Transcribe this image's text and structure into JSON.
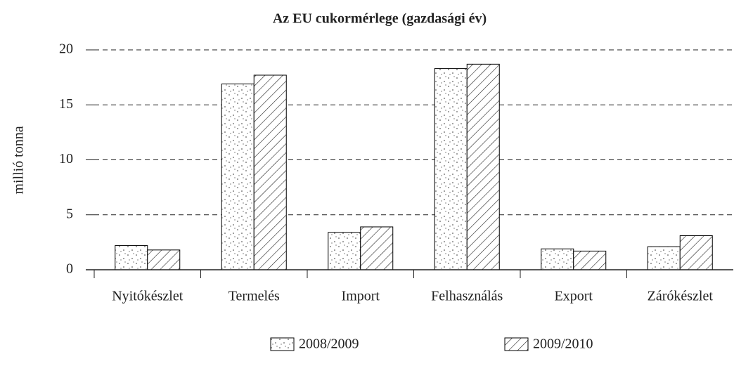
{
  "chart_data": {
    "type": "bar",
    "title": "Az EU cukormérlege (gazdasági év)",
    "ylabel": "millió tonna",
    "categories": [
      "Nyitókészlet",
      "Termelés",
      "Import",
      "Felhasználás",
      "Export",
      "Zárókészlet"
    ],
    "series": [
      {
        "name": "2008/2009",
        "color": "#000000",
        "pattern": "dots",
        "values": [
          2.2,
          16.9,
          3.4,
          18.3,
          1.9,
          2.1
        ]
      },
      {
        "name": "2009/2010",
        "color": "#000000",
        "pattern": "hatch",
        "values": [
          1.8,
          17.7,
          3.9,
          18.7,
          1.7,
          3.1
        ]
      }
    ],
    "ylim": [
      0,
      20
    ],
    "yticks": [
      0,
      5,
      10,
      15,
      20
    ],
    "grid": true,
    "legend": "bottom"
  }
}
